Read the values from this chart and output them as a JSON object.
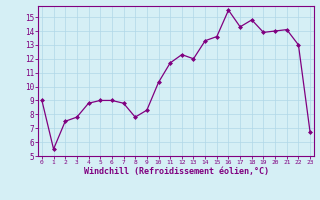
{
  "x": [
    0,
    1,
    2,
    3,
    4,
    5,
    6,
    7,
    8,
    9,
    10,
    11,
    12,
    13,
    14,
    15,
    16,
    17,
    18,
    19,
    20,
    21,
    22,
    23
  ],
  "y": [
    9.0,
    5.5,
    7.5,
    7.8,
    8.8,
    9.0,
    9.0,
    8.8,
    7.8,
    8.3,
    10.3,
    11.7,
    12.3,
    12.0,
    13.3,
    13.6,
    15.5,
    14.3,
    14.8,
    13.9,
    14.0,
    14.1,
    13.0,
    6.7
  ],
  "ylim_min": 5,
  "ylim_max": 15.8,
  "yticks": [
    5,
    6,
    7,
    8,
    9,
    10,
    11,
    12,
    13,
    14,
    15
  ],
  "xticks": [
    0,
    1,
    2,
    3,
    4,
    5,
    6,
    7,
    8,
    9,
    10,
    11,
    12,
    13,
    14,
    15,
    16,
    17,
    18,
    19,
    20,
    21,
    22,
    23
  ],
  "xlabel": "Windchill (Refroidissement éolien,°C)",
  "line_color": "#800080",
  "marker_color": "#800080",
  "bg_color": "#d5eff5",
  "grid_color": "#b0d8e8",
  "axis_color": "#800080",
  "tick_color": "#800080",
  "label_color": "#800080",
  "spine_color": "#800080",
  "xlim_min": -0.3,
  "xlim_max": 23.3
}
